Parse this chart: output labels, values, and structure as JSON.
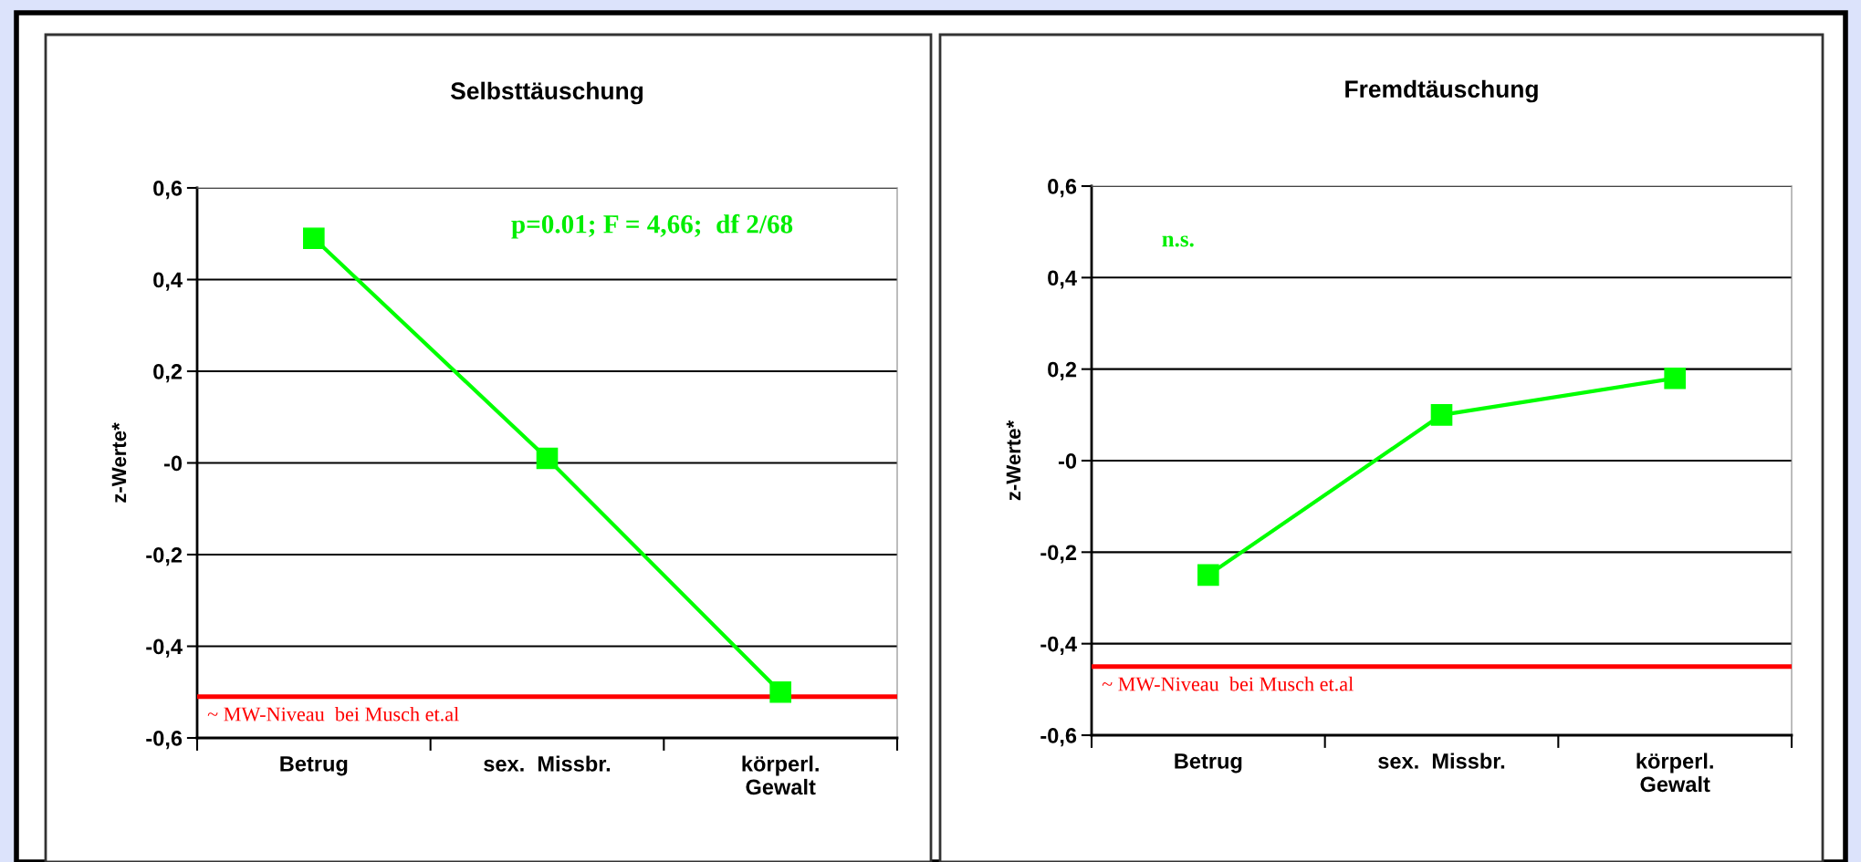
{
  "chart_data": [
    {
      "type": "line",
      "title": "Selbsttäuschung",
      "ylabel": "z-Werte*",
      "categories": [
        "Betrug",
        "sex.  Missbr.",
        "körperl.\nGewalt"
      ],
      "series": [
        {
          "color": "#00ff00",
          "values": [
            0.49,
            0.01,
            -0.5
          ]
        }
      ],
      "marker": "square",
      "line_style": "solid",
      "grid": "y",
      "ylim": [
        -0.6,
        0.6
      ],
      "yticks": [
        {
          "value": -0.6,
          "label": "-0,6"
        },
        {
          "value": -0.4,
          "label": "-0,4"
        },
        {
          "value": -0.2,
          "label": "-0,2"
        },
        {
          "value": 0,
          "label": "-0"
        },
        {
          "value": 0.2,
          "label": "0,2"
        },
        {
          "value": 0.4,
          "label": "0,4"
        },
        {
          "value": 0.6,
          "label": "0,6"
        }
      ],
      "ref_lines": [
        {
          "axis": "y",
          "value": -0.51,
          "label": "~ MW-Niveau  bei Musch et.al",
          "color": "#ff0000"
        }
      ],
      "annotations": [
        "p=0.01; F = 4,66;  df 2/68"
      ]
    },
    {
      "type": "line",
      "title": "Fremdtäuschung",
      "ylabel": "z-Werte*",
      "categories": [
        "Betrug",
        "sex.  Missbr.",
        "körperl.\nGewalt"
      ],
      "series": [
        {
          "color": "#00ff00",
          "values": [
            -0.25,
            0.1,
            0.18
          ]
        }
      ],
      "marker": "square",
      "line_style": "solid",
      "grid": "y",
      "ylim": [
        -0.6,
        0.6
      ],
      "yticks": [
        {
          "value": -0.6,
          "label": "-0,6"
        },
        {
          "value": -0.4,
          "label": "-0,4"
        },
        {
          "value": -0.2,
          "label": "-0,2"
        },
        {
          "value": 0,
          "label": "-0"
        },
        {
          "value": 0.2,
          "label": "0,2"
        },
        {
          "value": 0.4,
          "label": "0,4"
        },
        {
          "value": 0.6,
          "label": "0,6"
        }
      ],
      "ref_lines": [
        {
          "axis": "y",
          "value": -0.45,
          "label": "~ MW-Niveau  bei Musch et.al",
          "color": "#ff0000"
        }
      ],
      "annotations": [
        "n.s."
      ]
    }
  ]
}
